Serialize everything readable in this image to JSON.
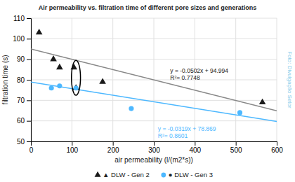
{
  "chart_data": {
    "type": "scatter",
    "title": "Air permeability vs. filtration time of different pore sizes and generations",
    "xlabel": "air permeability (l/(m2*s))",
    "ylabel": "filtration time (s)",
    "xlim": [
      0,
      600
    ],
    "ylim": [
      50,
      110
    ],
    "xticks": [
      0,
      100,
      200,
      300,
      400,
      500,
      600
    ],
    "yticks": [
      50,
      60,
      70,
      80,
      90,
      100,
      110
    ],
    "grid": true,
    "legend": "bottom",
    "series": [
      {
        "name": "▲ DLW - Gen 2",
        "type": "scatter",
        "marker": "triangle",
        "color": "#1a1a1a",
        "x": [
          20,
          55,
          70,
          105,
          110,
          175,
          565
        ],
        "values": [
          103,
          90,
          86,
          86,
          76,
          79,
          69
        ]
      },
      {
        "name": "● DLW - Gen 3",
        "type": "scatter",
        "marker": "circle",
        "color": "#4db8ff",
        "x": [
          50,
          70,
          110,
          245,
          510
        ],
        "values": [
          76,
          77,
          76,
          66,
          64
        ]
      },
      {
        "type": "line",
        "line_style": "solid",
        "color": "#888888",
        "x": [
          0,
          600
        ],
        "values": [
          94.994,
          64.874
        ]
      },
      {
        "type": "line",
        "line_style": "solid",
        "color": "#4db8ff",
        "x": [
          0,
          600
        ],
        "values": [
          78.869,
          59.729
        ]
      }
    ],
    "annotations": [
      {
        "lines": [
          "y = -0.0502x + 94.994",
          "R²= 0.7748"
        ],
        "x": 340,
        "y": 86,
        "color": "#1a1a1a"
      },
      {
        "lines": [
          "y = -0.0319x + 78.869",
          "R²= 0.8601"
        ],
        "x": 310,
        "y": 58,
        "color": "#4db8ff"
      }
    ],
    "ellipse": {
      "cx": 110,
      "cy": 81,
      "width": 22,
      "height": 17,
      "color": "#000000"
    },
    "watermark": {
      "text": "Foto: Divulgação Setor",
      "color": "#87CEEB"
    }
  }
}
